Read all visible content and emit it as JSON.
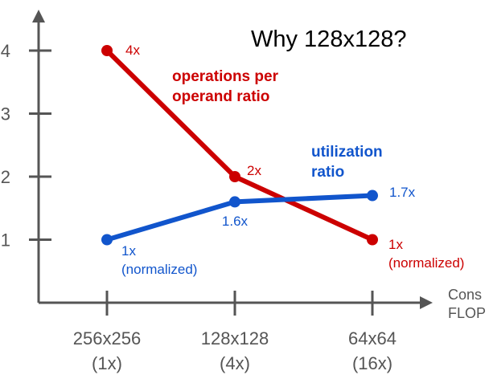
{
  "colors": {
    "axis": "#555555",
    "ops_series": "#cc0000",
    "util_series": "#1155cc",
    "title": "#000000"
  },
  "chart_data": {
    "type": "line",
    "title": "Why 128x128?",
    "categories": [
      "256x256\n(1x)",
      "128x128\n(4x)",
      "64x64\n(16x)"
    ],
    "category_lines": [
      [
        "256x256",
        "(1x)"
      ],
      [
        "128x128",
        "(4x)"
      ],
      [
        "64x64",
        "(16x)"
      ]
    ],
    "xlabel_lines": [
      "Cons",
      "FLOP"
    ],
    "ylabel": "",
    "yticks": [
      1,
      2,
      3,
      4
    ],
    "ylim": [
      0,
      4.6
    ],
    "grid": false,
    "legend": "none",
    "series": [
      {
        "key": "ops",
        "name_lines": [
          "operations per",
          "operand ratio"
        ],
        "values": [
          4,
          2,
          1
        ],
        "labels": [
          [
            "4x"
          ],
          [
            "2x"
          ],
          [
            "1x",
            "(normalized)"
          ]
        ]
      },
      {
        "key": "util",
        "name_lines": [
          "utilization",
          "ratio"
        ],
        "values": [
          1,
          1.6,
          1.7
        ],
        "labels": [
          [
            "1x",
            "(normalized)"
          ],
          [
            "1.6x"
          ],
          [
            "1.7x"
          ]
        ]
      }
    ]
  }
}
